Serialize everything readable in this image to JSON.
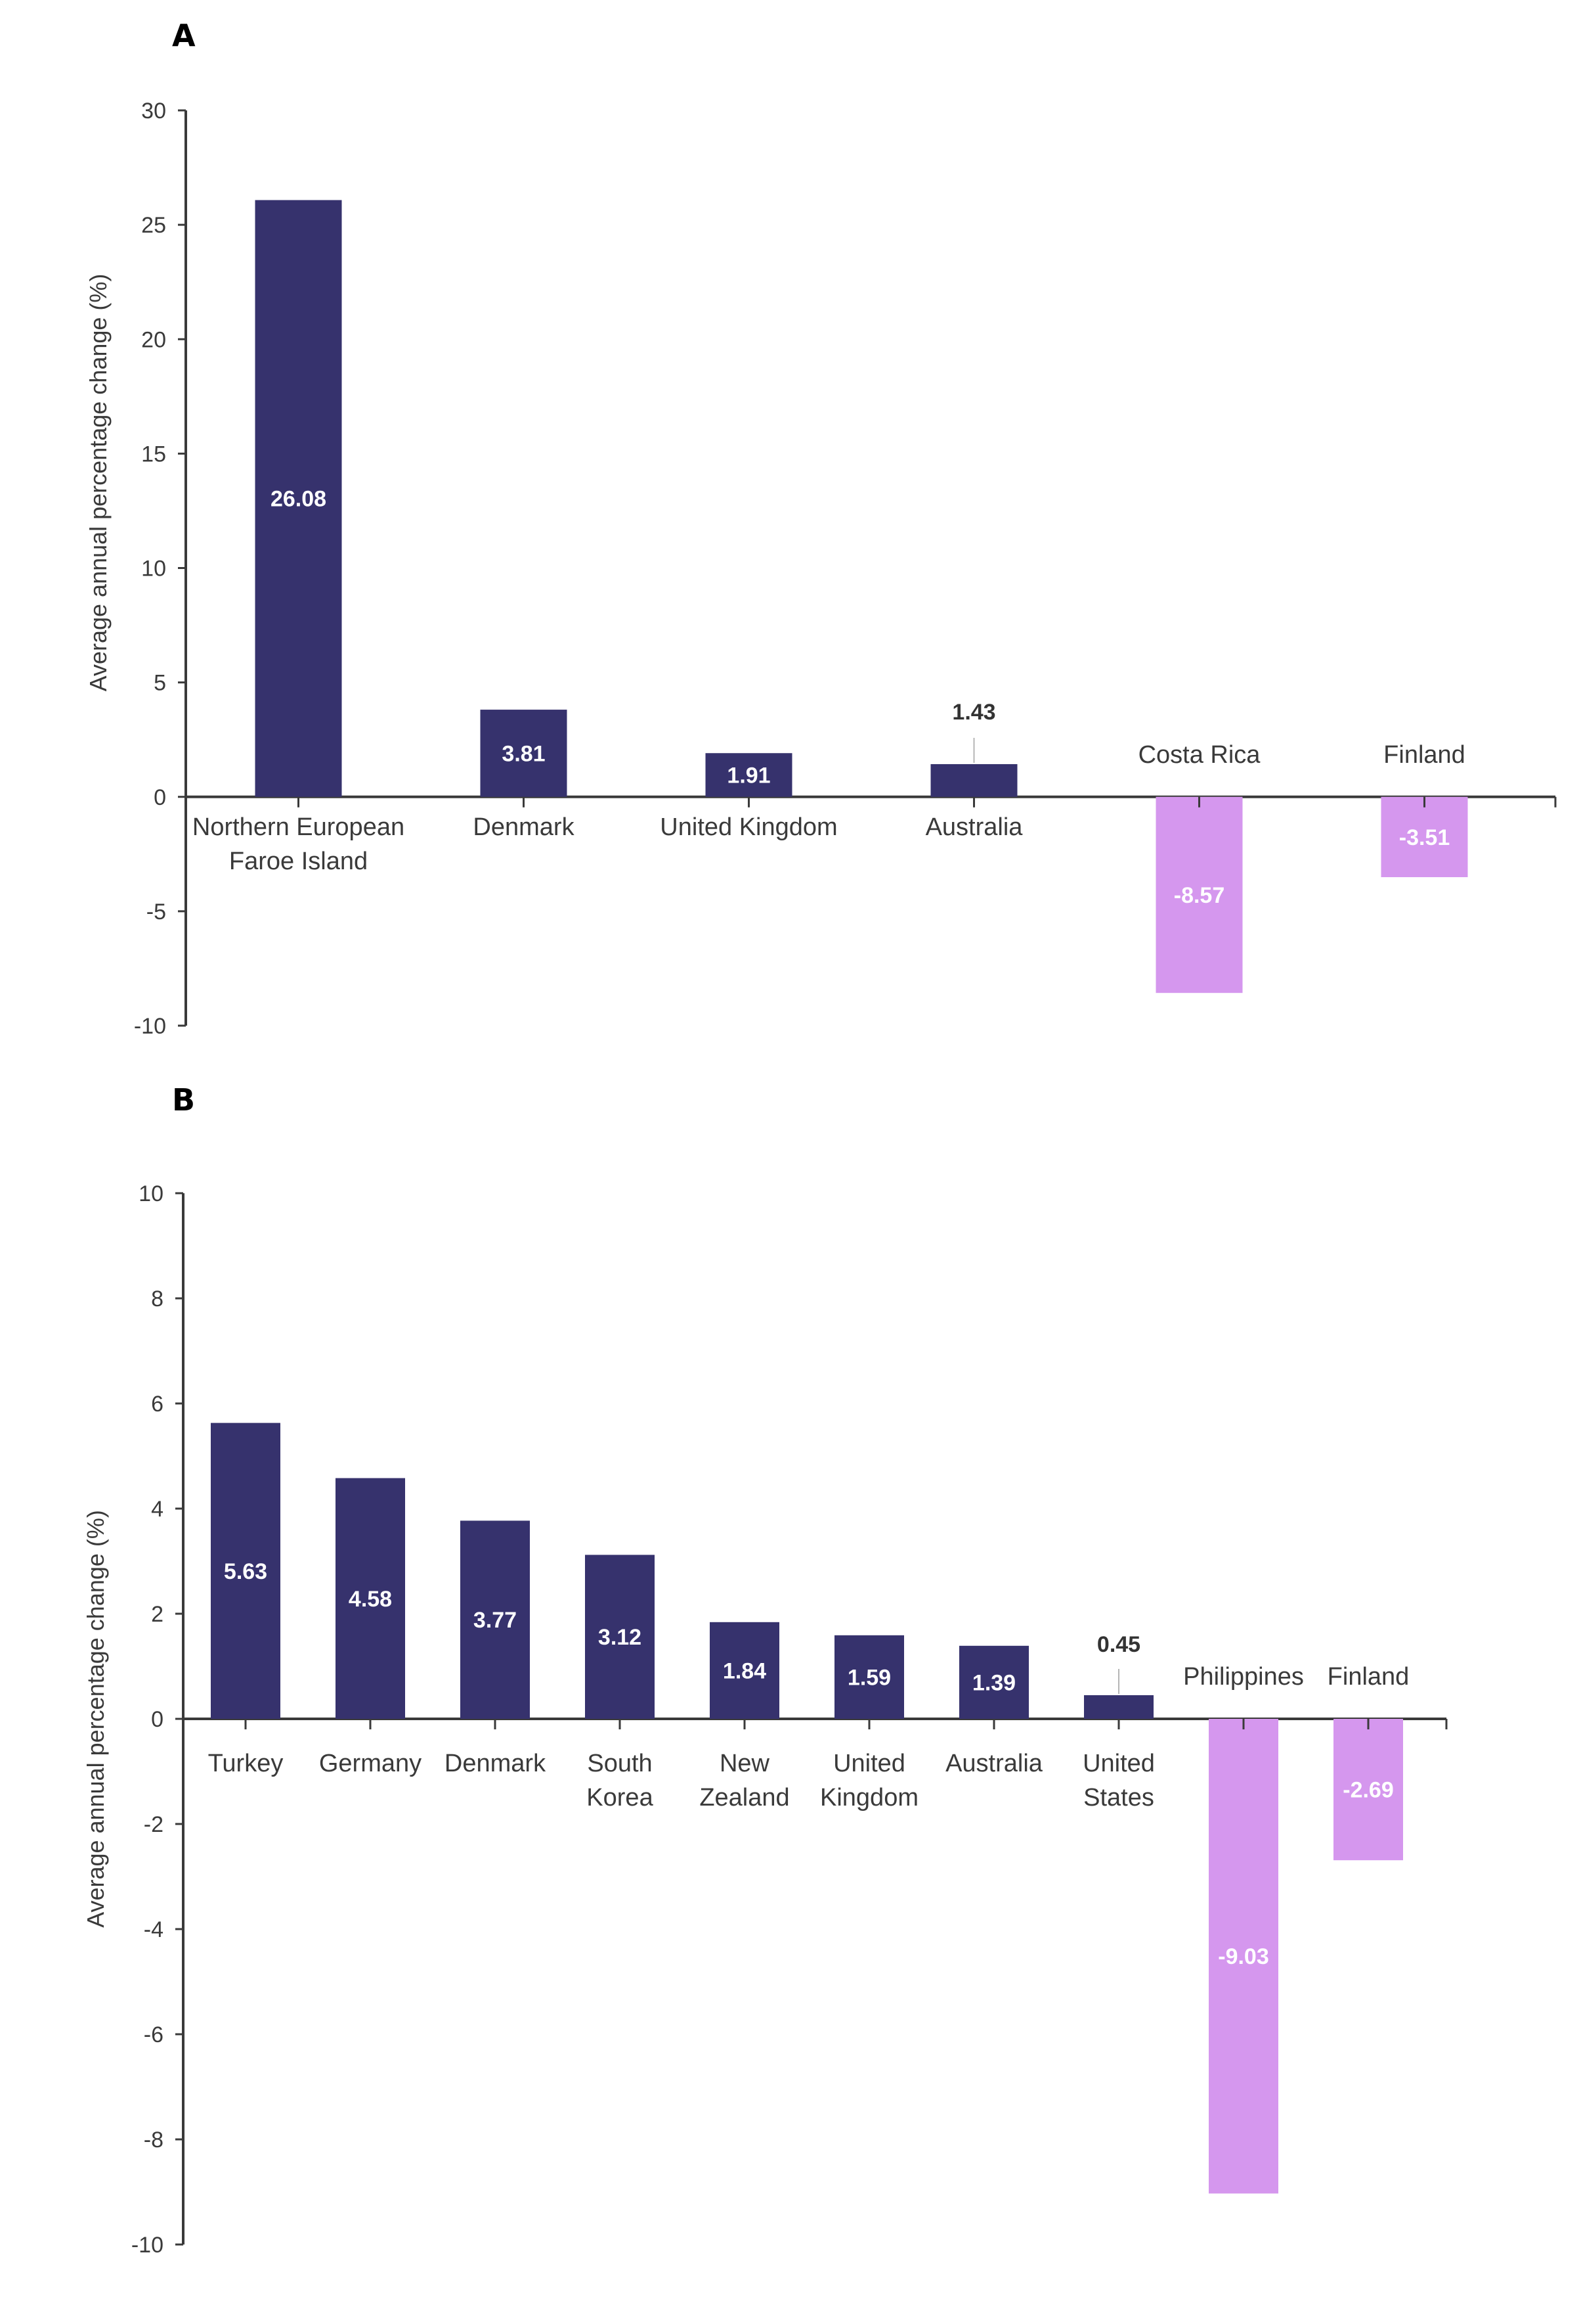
{
  "colors": {
    "positive": "#36326D",
    "negative": "#D597EE",
    "axis": "#3a3a3a",
    "leader": "#b5b5b5"
  },
  "chart_data": [
    {
      "panel": "A",
      "type": "bar",
      "ylabel": "Average annual percentage change (%)",
      "xlabel": "",
      "ylim": [
        -10,
        30
      ],
      "yticks": [
        30,
        25,
        20,
        15,
        10,
        5,
        0,
        -5,
        -10
      ],
      "grid": false,
      "legend": "none",
      "categories": [
        "Northern European Faroe Island",
        "Denmark",
        "United Kingdom",
        "Australia",
        "Costa Rica",
        "Finland"
      ],
      "category_lines": [
        [
          "Northern European",
          "Faroe Island"
        ],
        [
          "Denmark"
        ],
        [
          "United Kingdom"
        ],
        [
          "Australia"
        ],
        [
          "Costa Rica"
        ],
        [
          "Finland"
        ]
      ],
      "values": [
        26.08,
        3.81,
        1.91,
        1.43,
        -8.57,
        -3.51
      ],
      "value_labels": [
        "26.08",
        "3.81",
        "1.91",
        "1.43",
        "-8.57",
        "-3.51"
      ],
      "outside_label": [
        false,
        false,
        false,
        true,
        false,
        false
      ]
    },
    {
      "panel": "B",
      "type": "bar",
      "ylabel": "Average annual percentage change (%)",
      "xlabel": "",
      "ylim": [
        -10,
        10
      ],
      "yticks": [
        10,
        8,
        6,
        4,
        2,
        0,
        -2,
        -4,
        -6,
        -8,
        -10
      ],
      "grid": false,
      "legend": "none",
      "categories": [
        "Turkey",
        "Germany",
        "Denmark",
        "South Korea",
        "New Zealand",
        "United Kingdom",
        "Australia",
        "United States",
        "Philippines",
        "Finland"
      ],
      "category_lines": [
        [
          "Turkey"
        ],
        [
          "Germany"
        ],
        [
          "Denmark"
        ],
        [
          "South",
          "Korea"
        ],
        [
          "New",
          "Zealand"
        ],
        [
          "United",
          "Kingdom"
        ],
        [
          "Australia"
        ],
        [
          "United",
          "States"
        ],
        [
          "Philippines"
        ],
        [
          "Finland"
        ]
      ],
      "values": [
        5.63,
        4.58,
        3.77,
        3.12,
        1.84,
        1.59,
        1.39,
        0.45,
        -9.03,
        -2.69
      ],
      "value_labels": [
        "5.63",
        "4.58",
        "3.77",
        "3.12",
        "1.84",
        "1.59",
        "1.39",
        "0.45",
        "-9.03",
        "-2.69"
      ],
      "outside_label": [
        false,
        false,
        false,
        false,
        false,
        false,
        false,
        true,
        false,
        false
      ]
    }
  ]
}
